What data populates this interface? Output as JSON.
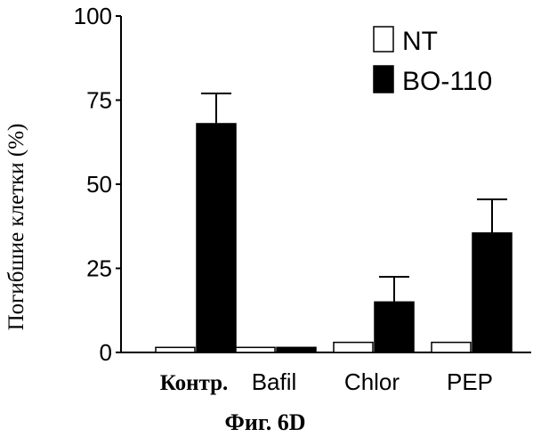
{
  "chart_data": {
    "type": "bar",
    "ylabel": "Погибшие клетки (%)",
    "ylim": [
      0,
      100
    ],
    "yticks": [
      0,
      25,
      50,
      75,
      100
    ],
    "yticks_label": [
      "0",
      "25",
      "50",
      "75",
      "100"
    ],
    "categories": [
      "Контр.",
      "Bafil",
      "Chlor",
      "PEP"
    ],
    "series": [
      {
        "name": "NT",
        "values": [
          1.5,
          1.5,
          3,
          3
        ],
        "color": "#ffffff"
      },
      {
        "name": "BO-110",
        "values": [
          68,
          1.5,
          15,
          35.5
        ],
        "errors": [
          9,
          0,
          7.5,
          10
        ],
        "color": "#000000"
      }
    ],
    "legend": "top-right",
    "grid": false,
    "caption": "Фиг. 6D"
  }
}
